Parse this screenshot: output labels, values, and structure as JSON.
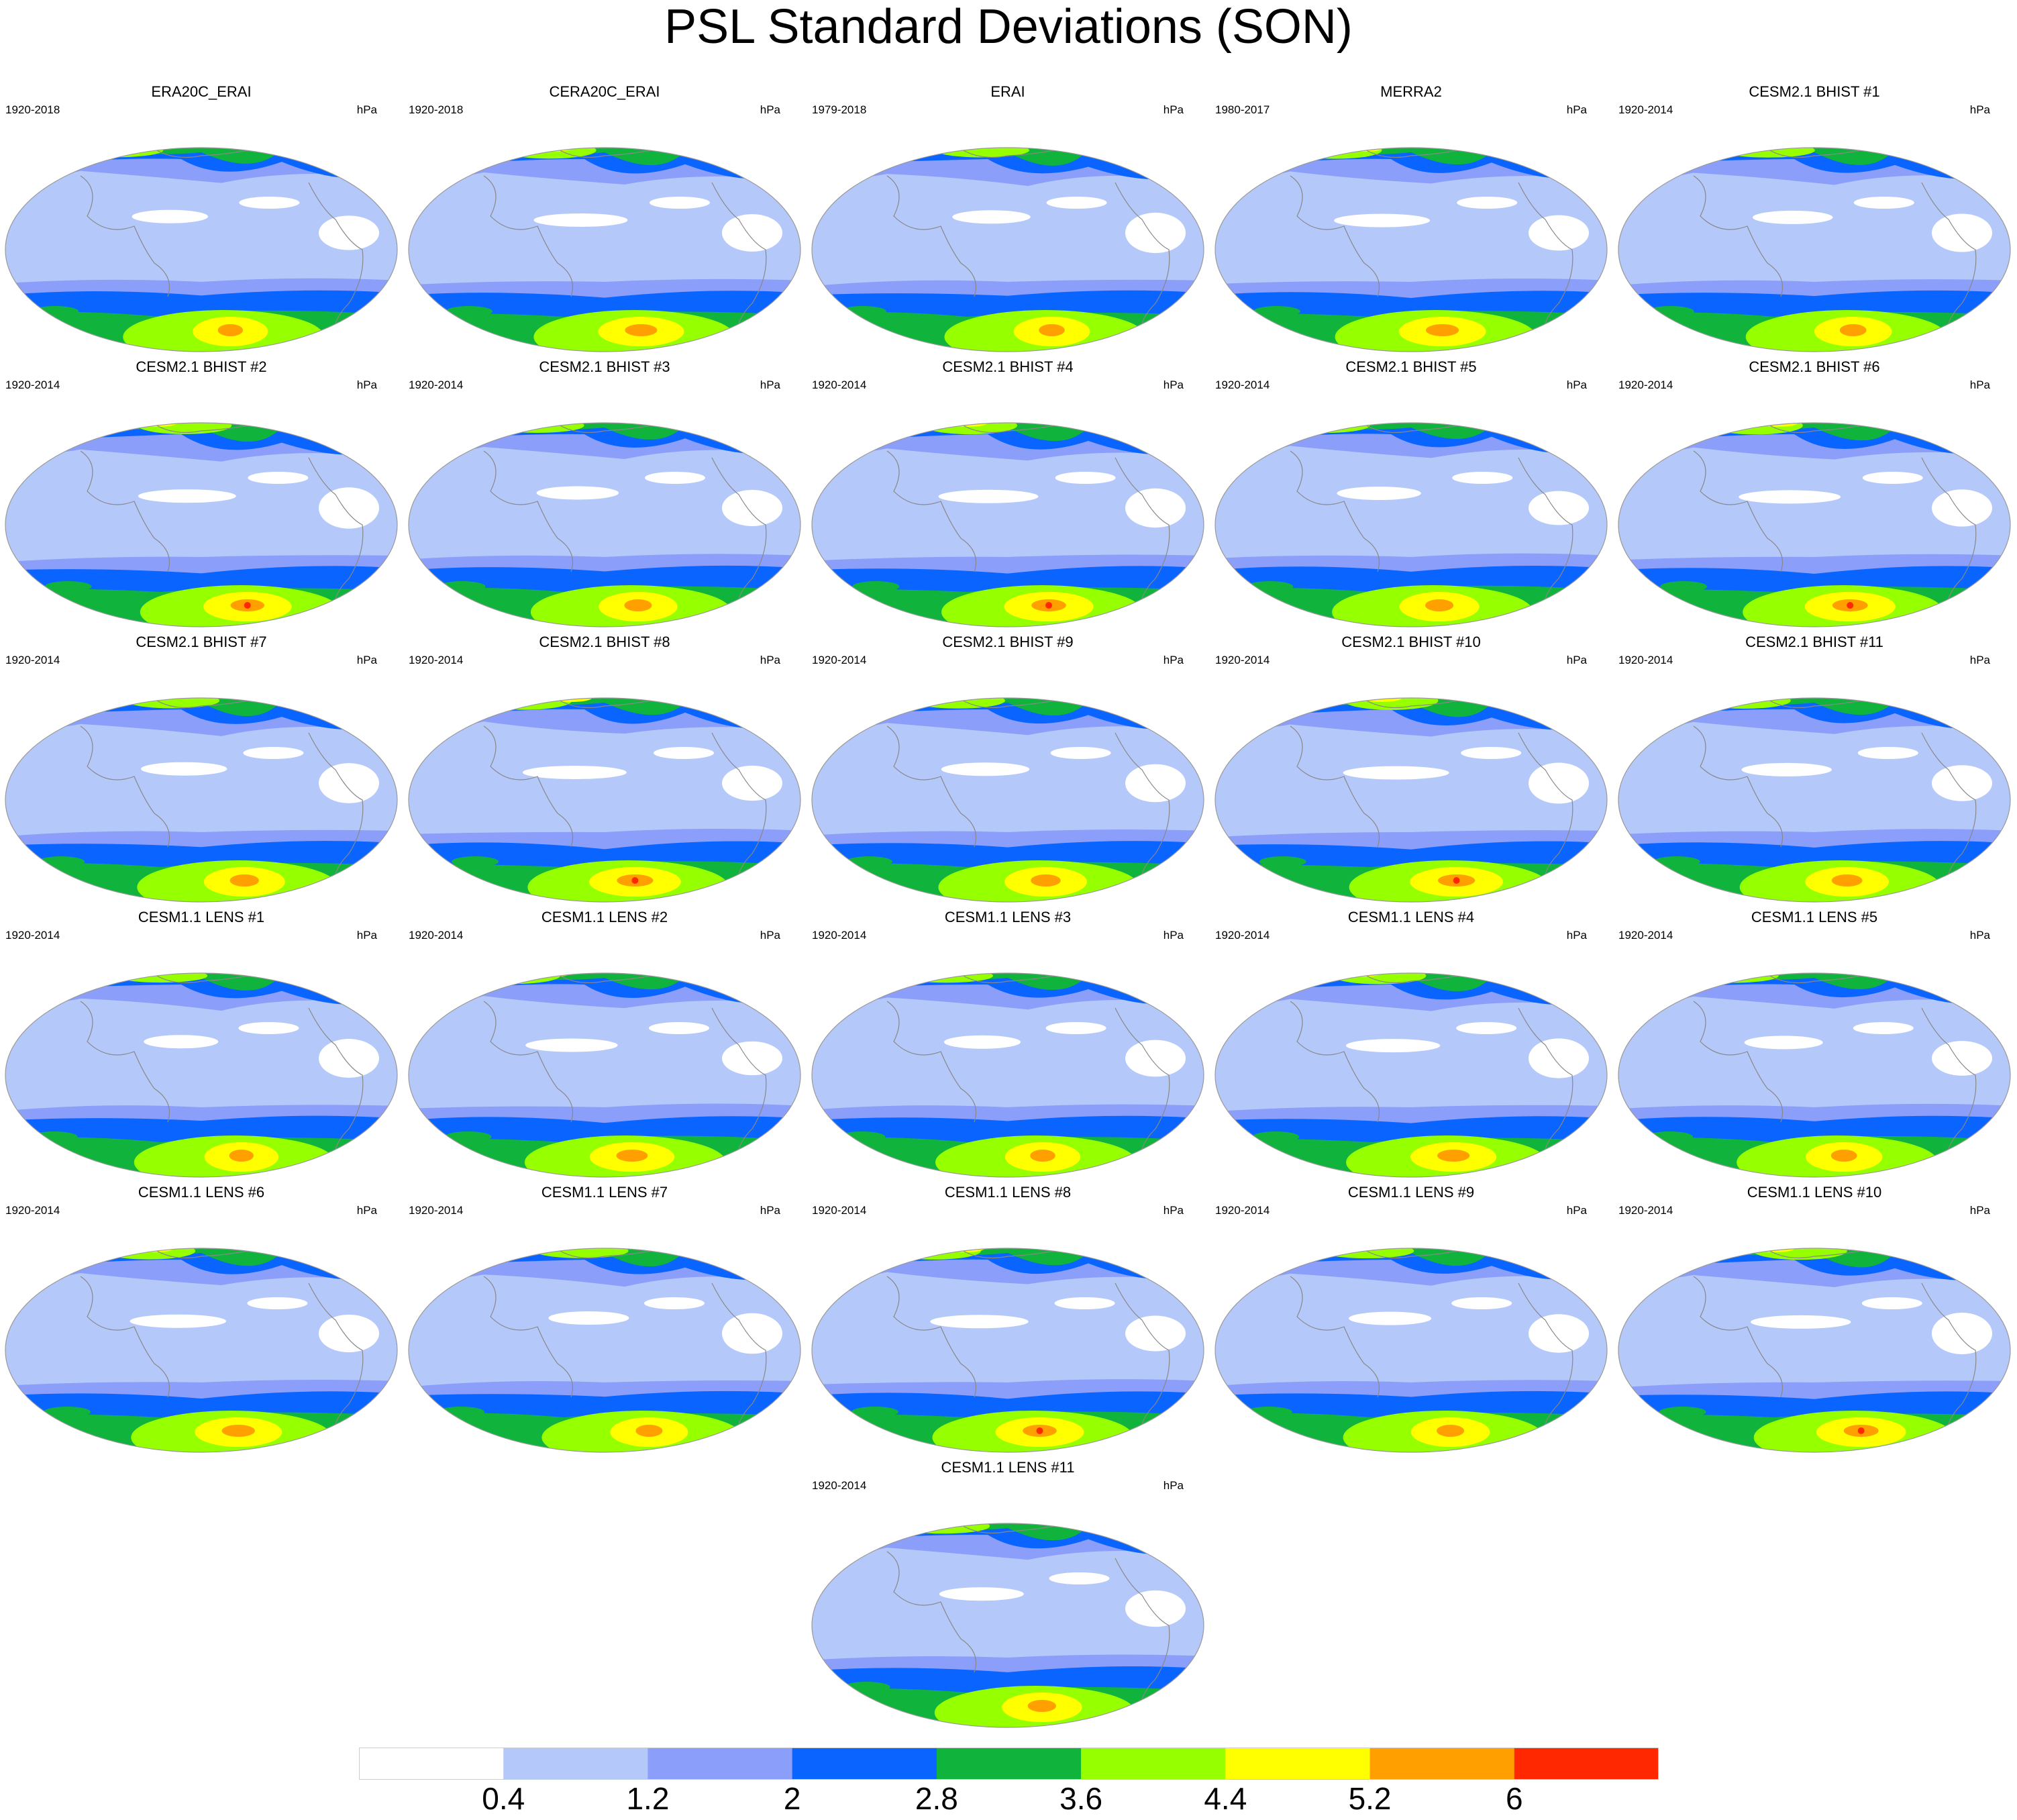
{
  "title": "PSL Standard Deviations (SON)",
  "panels": [
    {
      "title": "ERA20C_ERAI",
      "years": "1920-2018",
      "units": "hPa"
    },
    {
      "title": "CERA20C_ERAI",
      "years": "1920-2018",
      "units": "hPa"
    },
    {
      "title": "ERAI",
      "years": "1979-2018",
      "units": "hPa"
    },
    {
      "title": "MERRA2",
      "years": "1980-2017",
      "units": "hPa"
    },
    {
      "title": "CESM2.1 BHIST #1",
      "years": "1920-2014",
      "units": "hPa"
    },
    {
      "title": "CESM2.1 BHIST #2",
      "years": "1920-2014",
      "units": "hPa"
    },
    {
      "title": "CESM2.1 BHIST #3",
      "years": "1920-2014",
      "units": "hPa"
    },
    {
      "title": "CESM2.1 BHIST #4",
      "years": "1920-2014",
      "units": "hPa"
    },
    {
      "title": "CESM2.1 BHIST #5",
      "years": "1920-2014",
      "units": "hPa"
    },
    {
      "title": "CESM2.1 BHIST #6",
      "years": "1920-2014",
      "units": "hPa"
    },
    {
      "title": "CESM2.1 BHIST #7",
      "years": "1920-2014",
      "units": "hPa"
    },
    {
      "title": "CESM2.1 BHIST #8",
      "years": "1920-2014",
      "units": "hPa"
    },
    {
      "title": "CESM2.1 BHIST #9",
      "years": "1920-2014",
      "units": "hPa"
    },
    {
      "title": "CESM2.1 BHIST #10",
      "years": "1920-2014",
      "units": "hPa"
    },
    {
      "title": "CESM2.1 BHIST #11",
      "years": "1920-2014",
      "units": "hPa"
    },
    {
      "title": "CESM1.1 LENS #1",
      "years": "1920-2014",
      "units": "hPa"
    },
    {
      "title": "CESM1.1 LENS #2",
      "years": "1920-2014",
      "units": "hPa"
    },
    {
      "title": "CESM1.1 LENS #3",
      "years": "1920-2014",
      "units": "hPa"
    },
    {
      "title": "CESM1.1 LENS #4",
      "years": "1920-2014",
      "units": "hPa"
    },
    {
      "title": "CESM1.1 LENS #5",
      "years": "1920-2014",
      "units": "hPa"
    },
    {
      "title": "CESM1.1 LENS #6",
      "years": "1920-2014",
      "units": "hPa"
    },
    {
      "title": "CESM1.1 LENS #7",
      "years": "1920-2014",
      "units": "hPa"
    },
    {
      "title": "CESM1.1 LENS #8",
      "years": "1920-2014",
      "units": "hPa"
    },
    {
      "title": "CESM1.1 LENS #9",
      "years": "1920-2014",
      "units": "hPa"
    },
    {
      "title": "CESM1.1 LENS #10",
      "years": "1920-2014",
      "units": "hPa"
    },
    {
      "title": "CESM1.1 LENS #11",
      "years": "1920-2014",
      "units": "hPa"
    }
  ],
  "colorbar": {
    "colors": [
      "#ffffff",
      "#b4c8fa",
      "#8a9efa",
      "#0a64ff",
      "#10b43c",
      "#96ff00",
      "#ffff00",
      "#ffa000",
      "#ff2800"
    ],
    "labels": [
      "0.4",
      "1.2",
      "2",
      "2.8",
      "3.6",
      "4.4",
      "5.2",
      "6"
    ]
  }
}
